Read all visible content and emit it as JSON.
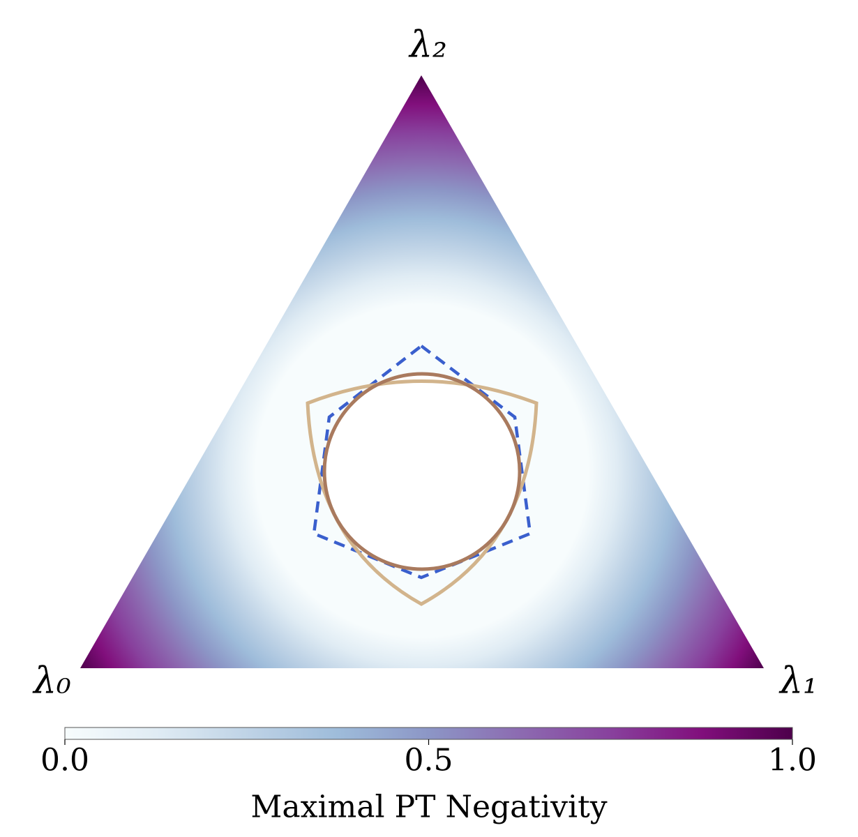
{
  "chart_data": {
    "type": "ternary",
    "corner_labels": [
      "λ₀",
      "λ₁",
      "λ₂"
    ],
    "colormap": "BuPu",
    "colorbar": {
      "label": "Maximal PT Negativity",
      "lim": [
        0,
        1
      ],
      "ticks": [
        {
          "value": 0,
          "label": "0.0"
        },
        {
          "value": 0.5,
          "label": "0.5"
        },
        {
          "value": 1,
          "label": "1.0"
        }
      ]
    }
  }
}
